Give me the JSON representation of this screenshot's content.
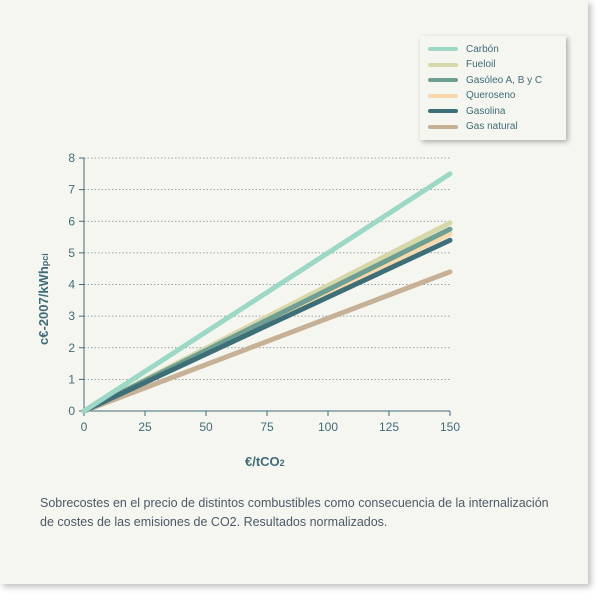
{
  "chart_data": {
    "type": "line",
    "x": [
      0,
      150
    ],
    "series": [
      {
        "name": "Carbón",
        "values": [
          0,
          7.5
        ],
        "color": "#9dd8c7"
      },
      {
        "name": "Fueloil",
        "values": [
          0,
          5.95
        ],
        "color": "#d6d8aa"
      },
      {
        "name": "Gasóleo A, B y C",
        "values": [
          0,
          5.75
        ],
        "color": "#6f9e92"
      },
      {
        "name": "Queroseno",
        "values": [
          0,
          5.6
        ],
        "color": "#f7d9ad"
      },
      {
        "name": "Gasolina",
        "values": [
          0,
          5.4
        ],
        "color": "#3e6f78"
      },
      {
        "name": "Gas natural",
        "values": [
          0,
          4.4
        ],
        "color": "#c6b196"
      }
    ],
    "xticks": [
      "0",
      "25",
      "50",
      "75",
      "100",
      "125",
      "150"
    ],
    "yticks": [
      "0",
      "1",
      "2",
      "3",
      "4",
      "5",
      "6",
      "7",
      "8"
    ],
    "xlim": [
      0,
      150
    ],
    "ylim": [
      0,
      8
    ],
    "xlabel": "€/tCO",
    "xlabel_sub": "2",
    "ylabel": "c€-2007/kWh",
    "ylabel_sub": "pci",
    "legend_position": "top-right",
    "grid": "horizontal dotted"
  },
  "caption": "Sobrecostes en el precio de distintos combustibles como consecuencia de la internalización de costes de las emisiones de CO2. Resultados normalizados."
}
